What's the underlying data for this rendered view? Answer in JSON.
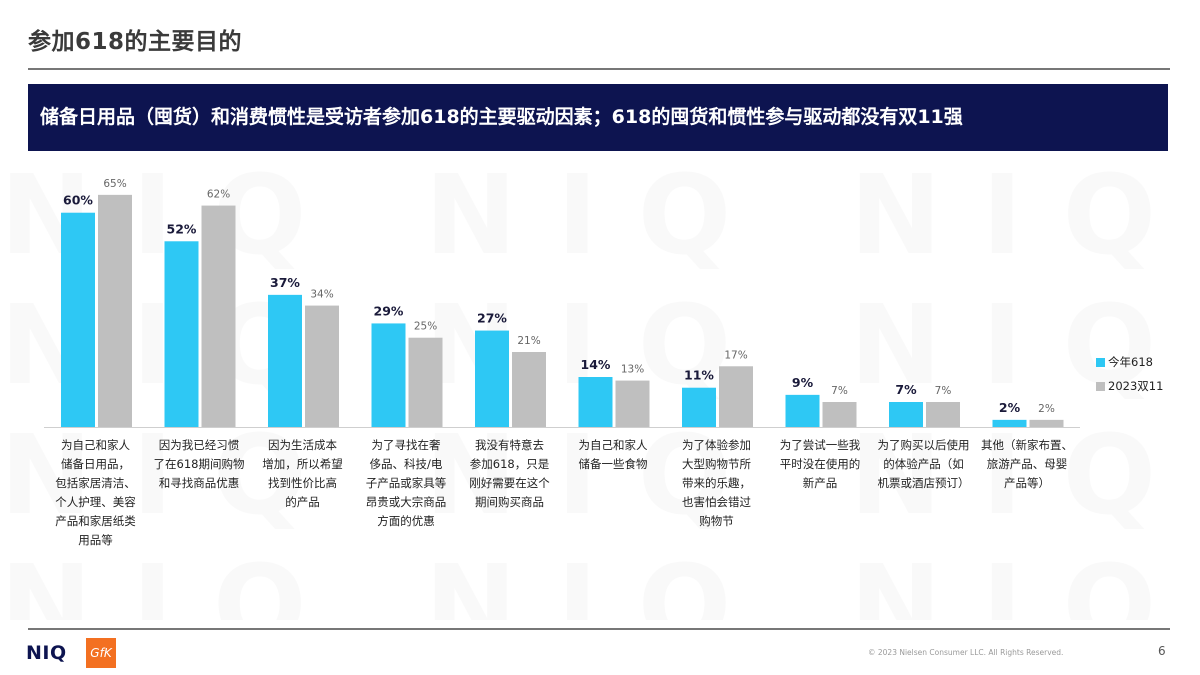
{
  "page": {
    "title": "参加618的主要目的",
    "banner": "储备日用品（囤货）和消费惯性是受访者参加618的主要驱动因素；618的囤货和惯性参与驱动都没有双11强",
    "watermark_text": "NIQ",
    "footer": {
      "niq_logo": "NIQ",
      "gfk_logo": "GfK",
      "copyright": "© 2023 Nielsen Consumer LLC. All Rights Reserved.",
      "page_number": "6"
    }
  },
  "chart_data": {
    "type": "bar",
    "title": "",
    "xlabel": "",
    "ylabel": "",
    "ylim": [
      0,
      70
    ],
    "grid": false,
    "legend_position": "right",
    "categories": [
      "为自己和家人储备日用品，包括家居清洁、个人护理、美容产品和家居纸类用品等",
      "因为我已经习惯了在618期间购物和寻找商品优惠",
      "因为生活成本增加，所以希望找到性价比高的产品",
      "为了寻找在奢侈品、科技/电子产品或家具等昂贵或大宗商品方面的优惠",
      "我没有特意去参加618，只是刚好需要在这个期间购买商品",
      "为自己和家人储备一些食物",
      "为了体验参加大型购物节所带来的乐趣，也害怕会错过购物节",
      "为了尝试一些我平时没在使用的新产品",
      "为了购买以后使用的体验产品（如机票或酒店预订）",
      "其他（新家布置、旅游产品、母婴产品等）"
    ],
    "category_lines": [
      [
        "为自己和家人",
        "储备日用品，",
        "包括家居清洁、",
        "个人护理、美容",
        "产品和家居纸类",
        "用品等"
      ],
      [
        "因为我已经习惯",
        "了在618期间购物",
        "和寻找商品优惠"
      ],
      [
        "因为生活成本",
        "增加，所以希望",
        "找到性价比高",
        "的产品"
      ],
      [
        "为了寻找在奢",
        "侈品、科技/电",
        "子产品或家具等",
        "昂贵或大宗商品",
        "方面的优惠"
      ],
      [
        "我没有特意去",
        "参加618，只是",
        "刚好需要在这个",
        "期间购买商品"
      ],
      [
        "为自己和家人",
        "储备一些食物"
      ],
      [
        "为了体验参加",
        "大型购物节所",
        "带来的乐趣，",
        "也害怕会错过",
        "购物节"
      ],
      [
        "为了尝试一些我",
        "平时没在使用的",
        "新产品"
      ],
      [
        "为了购买以后使用",
        "的体验产品（如",
        "机票或酒店预订）"
      ],
      [
        "其他（新家布置、",
        "旅游产品、母婴",
        "产品等）"
      ]
    ],
    "series": [
      {
        "name": "今年618",
        "color": "#2ec8f4",
        "values": [
          60,
          52,
          37,
          29,
          27,
          14,
          11,
          9,
          7,
          2
        ],
        "labels": [
          "60%",
          "52%",
          "37%",
          "29%",
          "27%",
          "14%",
          "11%",
          "9%",
          "7%",
          "2%"
        ]
      },
      {
        "name": "2023双11",
        "color": "#bfbfbf",
        "values": [
          65,
          62,
          34,
          25,
          21,
          13,
          17,
          7,
          7,
          2
        ],
        "labels": [
          "65%",
          "62%",
          "34%",
          "25%",
          "21%",
          "13%",
          "17%",
          "7%",
          "7%",
          "2%"
        ]
      }
    ]
  }
}
